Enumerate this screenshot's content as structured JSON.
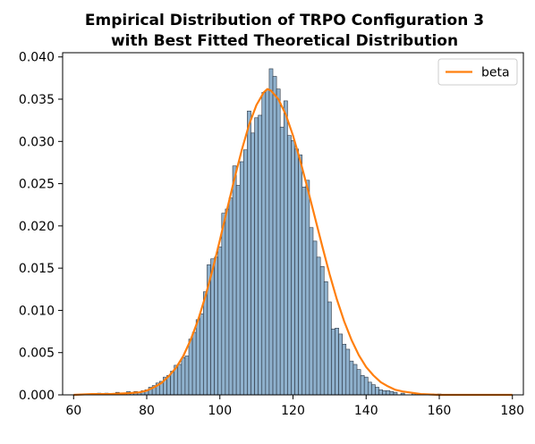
{
  "chart_data": {
    "type": "histogram",
    "title": "Empirical Distribution of TRPO Configuration 3",
    "subtitle": "with Best Fitted Theoretical Distribution",
    "xlabel": "",
    "ylabel": "",
    "xlim": [
      57,
      183
    ],
    "ylim": [
      0,
      0.0405
    ],
    "xticks": [
      60,
      80,
      100,
      120,
      140,
      160,
      180
    ],
    "xtick_labels": [
      "60",
      "80",
      "100",
      "120",
      "140",
      "160",
      "180"
    ],
    "yticks": [
      0,
      0.005,
      0.01,
      0.015,
      0.02,
      0.025,
      0.03,
      0.035,
      0.04
    ],
    "ytick_labels": [
      "0.000",
      "0.005",
      "0.010",
      "0.015",
      "0.020",
      "0.025",
      "0.030",
      "0.035",
      "0.040"
    ],
    "grid": false,
    "legend": {
      "position": "top-right",
      "entries": [
        "beta"
      ]
    },
    "bin_width": 1,
    "histogram": [
      {
        "x": 67,
        "y": 0.0002
      },
      {
        "x": 69,
        "y": 0.0002
      },
      {
        "x": 72,
        "y": 0.0003
      },
      {
        "x": 74,
        "y": 0.0002
      },
      {
        "x": 75,
        "y": 0.0004
      },
      {
        "x": 76,
        "y": 0.0002
      },
      {
        "x": 77,
        "y": 0.0004
      },
      {
        "x": 78,
        "y": 0.0003
      },
      {
        "x": 79,
        "y": 0.0005
      },
      {
        "x": 80,
        "y": 0.0006
      },
      {
        "x": 81,
        "y": 0.0009
      },
      {
        "x": 82,
        "y": 0.0011
      },
      {
        "x": 83,
        "y": 0.0014
      },
      {
        "x": 84,
        "y": 0.0016
      },
      {
        "x": 85,
        "y": 0.0021
      },
      {
        "x": 86,
        "y": 0.0023
      },
      {
        "x": 87,
        "y": 0.0028
      },
      {
        "x": 88,
        "y": 0.0035
      },
      {
        "x": 89,
        "y": 0.0036
      },
      {
        "x": 90,
        "y": 0.0044
      },
      {
        "x": 91,
        "y": 0.0046
      },
      {
        "x": 92,
        "y": 0.0066
      },
      {
        "x": 93,
        "y": 0.0074
      },
      {
        "x": 94,
        "y": 0.0089
      },
      {
        "x": 95,
        "y": 0.0096
      },
      {
        "x": 96,
        "y": 0.0122
      },
      {
        "x": 97,
        "y": 0.0154
      },
      {
        "x": 98,
        "y": 0.0161
      },
      {
        "x": 99,
        "y": 0.0163
      },
      {
        "x": 100,
        "y": 0.0175
      },
      {
        "x": 101,
        "y": 0.0215
      },
      {
        "x": 102,
        "y": 0.022
      },
      {
        "x": 103,
        "y": 0.0233
      },
      {
        "x": 104,
        "y": 0.0271
      },
      {
        "x": 105,
        "y": 0.0248
      },
      {
        "x": 106,
        "y": 0.0276
      },
      {
        "x": 107,
        "y": 0.029
      },
      {
        "x": 108,
        "y": 0.0336
      },
      {
        "x": 109,
        "y": 0.031
      },
      {
        "x": 110,
        "y": 0.0328
      },
      {
        "x": 111,
        "y": 0.0331
      },
      {
        "x": 112,
        "y": 0.0358
      },
      {
        "x": 113,
        "y": 0.0361
      },
      {
        "x": 114,
        "y": 0.0386
      },
      {
        "x": 115,
        "y": 0.0377
      },
      {
        "x": 116,
        "y": 0.0362
      },
      {
        "x": 117,
        "y": 0.0317
      },
      {
        "x": 118,
        "y": 0.0348
      },
      {
        "x": 119,
        "y": 0.0307
      },
      {
        "x": 120,
        "y": 0.0301
      },
      {
        "x": 121,
        "y": 0.0291
      },
      {
        "x": 122,
        "y": 0.0284
      },
      {
        "x": 123,
        "y": 0.0246
      },
      {
        "x": 124,
        "y": 0.0254
      },
      {
        "x": 125,
        "y": 0.0198
      },
      {
        "x": 126,
        "y": 0.0182
      },
      {
        "x": 127,
        "y": 0.0163
      },
      {
        "x": 128,
        "y": 0.0152
      },
      {
        "x": 129,
        "y": 0.0134
      },
      {
        "x": 130,
        "y": 0.011
      },
      {
        "x": 131,
        "y": 0.0078
      },
      {
        "x": 132,
        "y": 0.0079
      },
      {
        "x": 133,
        "y": 0.0072
      },
      {
        "x": 134,
        "y": 0.006
      },
      {
        "x": 135,
        "y": 0.0054
      },
      {
        "x": 136,
        "y": 0.004
      },
      {
        "x": 137,
        "y": 0.0036
      },
      {
        "x": 138,
        "y": 0.003
      },
      {
        "x": 139,
        "y": 0.0023
      },
      {
        "x": 140,
        "y": 0.0021
      },
      {
        "x": 141,
        "y": 0.0015
      },
      {
        "x": 142,
        "y": 0.0012
      },
      {
        "x": 143,
        "y": 0.0009
      },
      {
        "x": 144,
        "y": 0.0006
      },
      {
        "x": 145,
        "y": 0.0005
      },
      {
        "x": 146,
        "y": 0.0005
      },
      {
        "x": 147,
        "y": 0.0004
      },
      {
        "x": 148,
        "y": 0.0003
      },
      {
        "x": 150,
        "y": 0.0002
      },
      {
        "x": 153,
        "y": 0.0002
      },
      {
        "x": 155,
        "y": 0.0001
      },
      {
        "x": 158,
        "y": 0.0001
      },
      {
        "x": 160,
        "y": 0.0001
      }
    ],
    "series": [
      {
        "name": "beta",
        "color": "#ff7f0e",
        "x": [
          60,
          65,
          70,
          75,
          78,
          80,
          82,
          84,
          86,
          88,
          90,
          92,
          94,
          96,
          98,
          100,
          102,
          104,
          106,
          108,
          110,
          112,
          113,
          114,
          116,
          118,
          120,
          122,
          124,
          126,
          128,
          130,
          132,
          134,
          136,
          138,
          140,
          142,
          144,
          146,
          148,
          150,
          155,
          160,
          170,
          180
        ],
        "y": [
          0.0,
          0.0001,
          0.0001,
          0.0002,
          0.0003,
          0.0005,
          0.0009,
          0.0014,
          0.0022,
          0.0032,
          0.0046,
          0.0065,
          0.0088,
          0.0116,
          0.0148,
          0.0183,
          0.022,
          0.0256,
          0.029,
          0.032,
          0.0343,
          0.0358,
          0.0362,
          0.036,
          0.035,
          0.0332,
          0.0307,
          0.0277,
          0.0244,
          0.021,
          0.0176,
          0.0143,
          0.0113,
          0.0087,
          0.0065,
          0.0047,
          0.0033,
          0.0023,
          0.0015,
          0.001,
          0.0006,
          0.0004,
          0.0001,
          0.0,
          0.0,
          0.0
        ]
      }
    ]
  },
  "colors": {
    "bar_fill": "#8fb1cd",
    "bar_edge": "#2b3440",
    "line": "#ff7f0e"
  }
}
